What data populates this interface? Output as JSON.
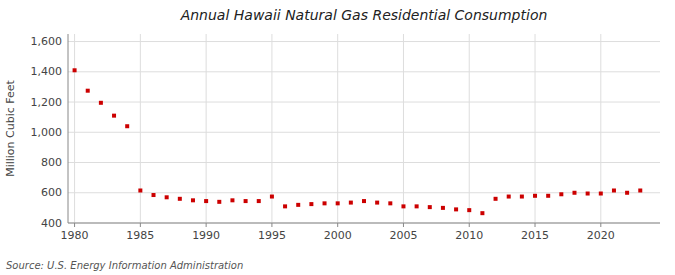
{
  "chart_data": {
    "type": "scatter",
    "title": "Annual Hawaii Natural Gas Residential Consumption",
    "ylabel": "Million Cubic Feet",
    "annotations": [
      "Source: U.S. Energy Information Administration"
    ],
    "color": "#cc0000",
    "marker": "square",
    "grid": true,
    "xlim": [
      1979.5,
      2024.5
    ],
    "ylim": [
      400,
      1650
    ],
    "xticks": [
      1980,
      1985,
      1990,
      1995,
      2000,
      2005,
      2010,
      2015,
      2020
    ],
    "yticks": [
      400,
      600,
      800,
      {
        "value": 1000,
        "label": "1,000"
      },
      {
        "value": 1200,
        "label": "1,200"
      },
      {
        "value": 1400,
        "label": "1,400"
      },
      {
        "value": 1600,
        "label": "1,600"
      }
    ],
    "x": [
      1980,
      1981,
      1982,
      1983,
      1984,
      1985,
      1986,
      1987,
      1988,
      1989,
      1990,
      1991,
      1992,
      1993,
      1994,
      1995,
      1996,
      1997,
      1998,
      1999,
      2000,
      2001,
      2002,
      2003,
      2004,
      2005,
      2006,
      2007,
      2008,
      2009,
      2010,
      2011,
      2012,
      2013,
      2014,
      2015,
      2016,
      2017,
      2018,
      2019,
      2020,
      2021,
      2022,
      2023
    ],
    "values": [
      1410,
      1275,
      1195,
      1110,
      1040,
      615,
      585,
      570,
      560,
      550,
      545,
      540,
      550,
      545,
      545,
      575,
      510,
      520,
      525,
      530,
      530,
      535,
      545,
      535,
      530,
      510,
      510,
      505,
      500,
      490,
      485,
      465,
      560,
      575,
      575,
      580,
      580,
      590,
      600,
      595,
      595,
      615,
      600,
      615
    ]
  }
}
